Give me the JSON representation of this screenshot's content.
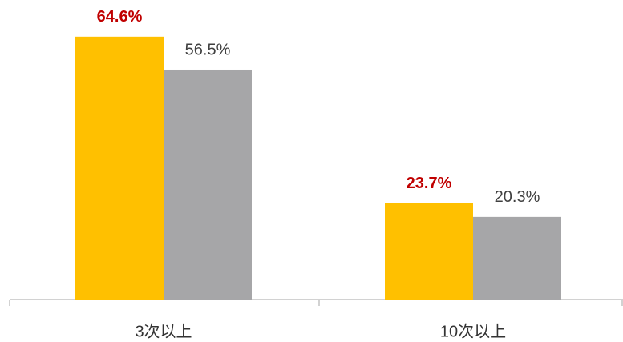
{
  "chart_data": {
    "type": "bar",
    "categories": [
      "3次以上",
      "10次以上"
    ],
    "series": [
      {
        "color": "#ffc000",
        "values": [
          64.6,
          23.7
        ],
        "value_labels": [
          "64.6%",
          "23.7%"
        ]
      },
      {
        "color": "#a6a6a8",
        "values": [
          56.5,
          20.3
        ],
        "value_labels": [
          "56.5%",
          "20.3%"
        ]
      }
    ]
  }
}
